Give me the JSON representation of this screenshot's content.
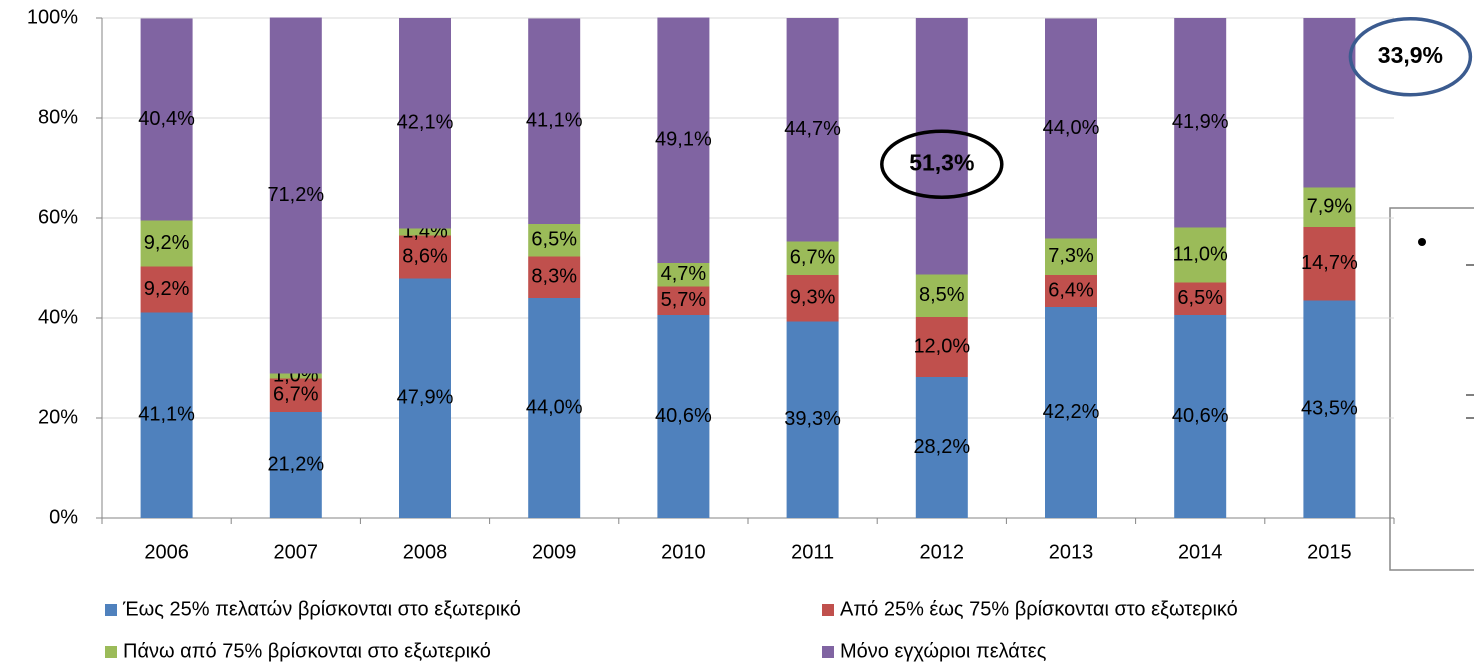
{
  "chart_data": {
    "type": "stacked_bar",
    "categories": [
      "2006",
      "2007",
      "2008",
      "2009",
      "2010",
      "2011",
      "2012",
      "2013",
      "2014",
      "2015"
    ],
    "ylim": [
      0,
      100
    ],
    "yticks": [
      {
        "value": 0,
        "label": "0%"
      },
      {
        "value": 20,
        "label": "20%"
      },
      {
        "value": 40,
        "label": "40%"
      },
      {
        "value": 60,
        "label": "60%"
      },
      {
        "value": 80,
        "label": "80%"
      },
      {
        "value": 100,
        "label": "100%"
      }
    ],
    "grid": true,
    "legend": "bottom",
    "series": [
      {
        "name": "Έως 25% πελατών βρίσκονται στο εξωτερικό",
        "color": "#4f81bd",
        "values": [
          41.1,
          21.2,
          47.9,
          44.0,
          40.6,
          39.3,
          28.2,
          42.2,
          40.6,
          43.5
        ],
        "value_labels": [
          "41,1%",
          "21,2%",
          "47,9%",
          "44,0%",
          "40,6%",
          "39,3%",
          "28,2%",
          "42,2%",
          "40,6%",
          "43,5%"
        ]
      },
      {
        "name": "Από 25% έως 75% βρίσκονται στο εξωτερικό",
        "color": "#c0504d",
        "values": [
          9.2,
          6.7,
          8.6,
          8.3,
          5.7,
          9.3,
          12.0,
          6.4,
          6.5,
          14.7
        ],
        "value_labels": [
          "9,2%",
          "6,7%",
          "8,6%",
          "8,3%",
          "5,7%",
          "9,3%",
          "12,0%",
          "6,4%",
          "6,5%",
          "14,7%"
        ]
      },
      {
        "name": "Πάνω από 75% βρίσκονται στο εξωτερικό",
        "color": "#9bbb59",
        "values": [
          9.2,
          1.0,
          1.4,
          6.5,
          4.7,
          6.7,
          8.5,
          7.3,
          11.0,
          7.9
        ],
        "value_labels": [
          "9,2%",
          "1,0%",
          "1,4%",
          "6,5%",
          "4,7%",
          "6,7%",
          "8,5%",
          "7,3%",
          "11,0%",
          "7,9%"
        ]
      },
      {
        "name": "Μόνο εγχώριοι πελάτες",
        "color": "#8064a2",
        "values": [
          40.4,
          71.2,
          42.1,
          41.1,
          49.1,
          44.7,
          51.3,
          44.0,
          41.9,
          33.9
        ],
        "value_labels": [
          "40,4%",
          "71,2%",
          "42,1%",
          "41,1%",
          "49,1%",
          "44,7%",
          "51,3%",
          "44,0%",
          "41,9%",
          "33,9%"
        ]
      }
    ]
  }
}
